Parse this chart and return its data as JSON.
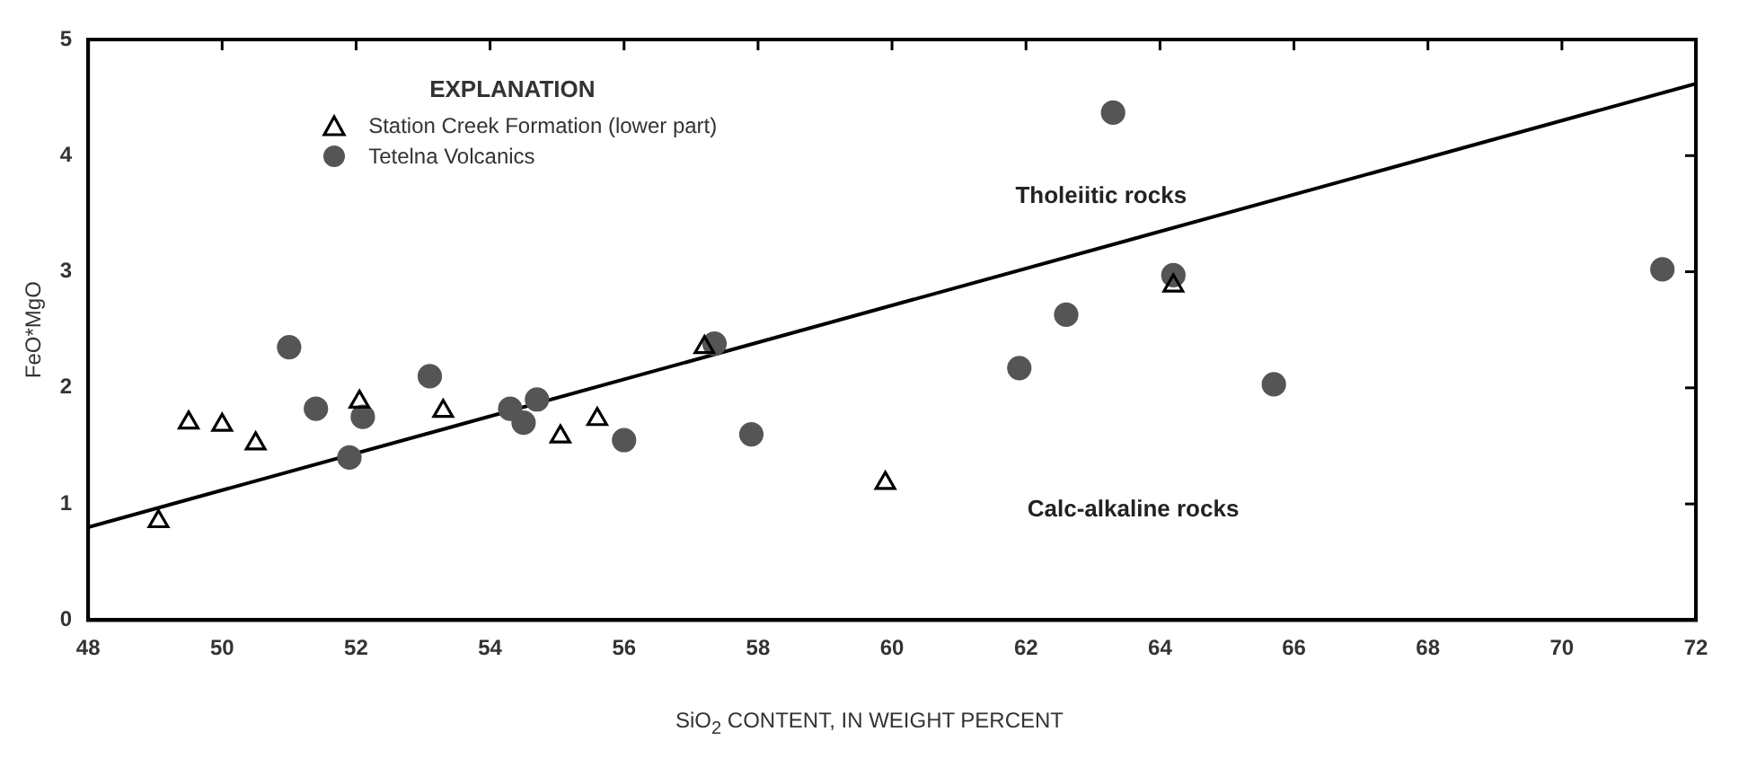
{
  "chart_data": {
    "type": "scatter",
    "xlabel": "SiO$_{2}$  CONTENT, IN WEIGHT PERCENT",
    "ylabel": "FeO*MgO",
    "legend_title": "EXPLANATION",
    "legend": "top left",
    "grid": false,
    "xlim": [
      48,
      72
    ],
    "xticks": [
      48,
      50,
      52,
      54,
      56,
      58,
      60,
      62,
      64,
      66,
      68,
      70,
      72
    ],
    "ylim": [
      0,
      5
    ],
    "yticks": [
      0,
      1,
      2,
      3,
      4,
      5
    ],
    "annotations": [
      "Tholeiitic rocks",
      "Calc-alkaline rocks"
    ],
    "series": [
      {
        "name": "Station Creek Formation (lower part)",
        "color": "#000000",
        "marker": "triangle",
        "x": [
          49.05,
          49.5,
          50,
          50.5,
          52.05,
          53.3,
          55.05,
          55.6,
          57.2,
          59.9,
          64.2
        ],
        "values": [
          0.85,
          1.7,
          1.68,
          1.52,
          1.88,
          1.8,
          1.58,
          1.73,
          2.35,
          1.18,
          2.88
        ]
      },
      {
        "name": "Tetelna Volcanics",
        "color": "#555555",
        "marker": "circle",
        "x": [
          51,
          51.4,
          51.9,
          52.1,
          53.1,
          54.3,
          54.5,
          54.7,
          56,
          57.35,
          57.9,
          61.9,
          62.6,
          63.3,
          64.2,
          65.7,
          71.5
        ],
        "values": [
          2.35,
          1.82,
          1.4,
          1.75,
          2.1,
          1.82,
          1.7,
          1.9,
          1.55,
          2.38,
          1.6,
          2.17,
          2.63,
          4.37,
          2.97,
          2.03,
          3.02
        ]
      },
      {
        "type": "line",
        "color": "#000000",
        "marker": "none",
        "line_style": "solid",
        "x": [
          48,
          72
        ],
        "values": [
          0.8,
          4.62
        ]
      }
    ]
  }
}
